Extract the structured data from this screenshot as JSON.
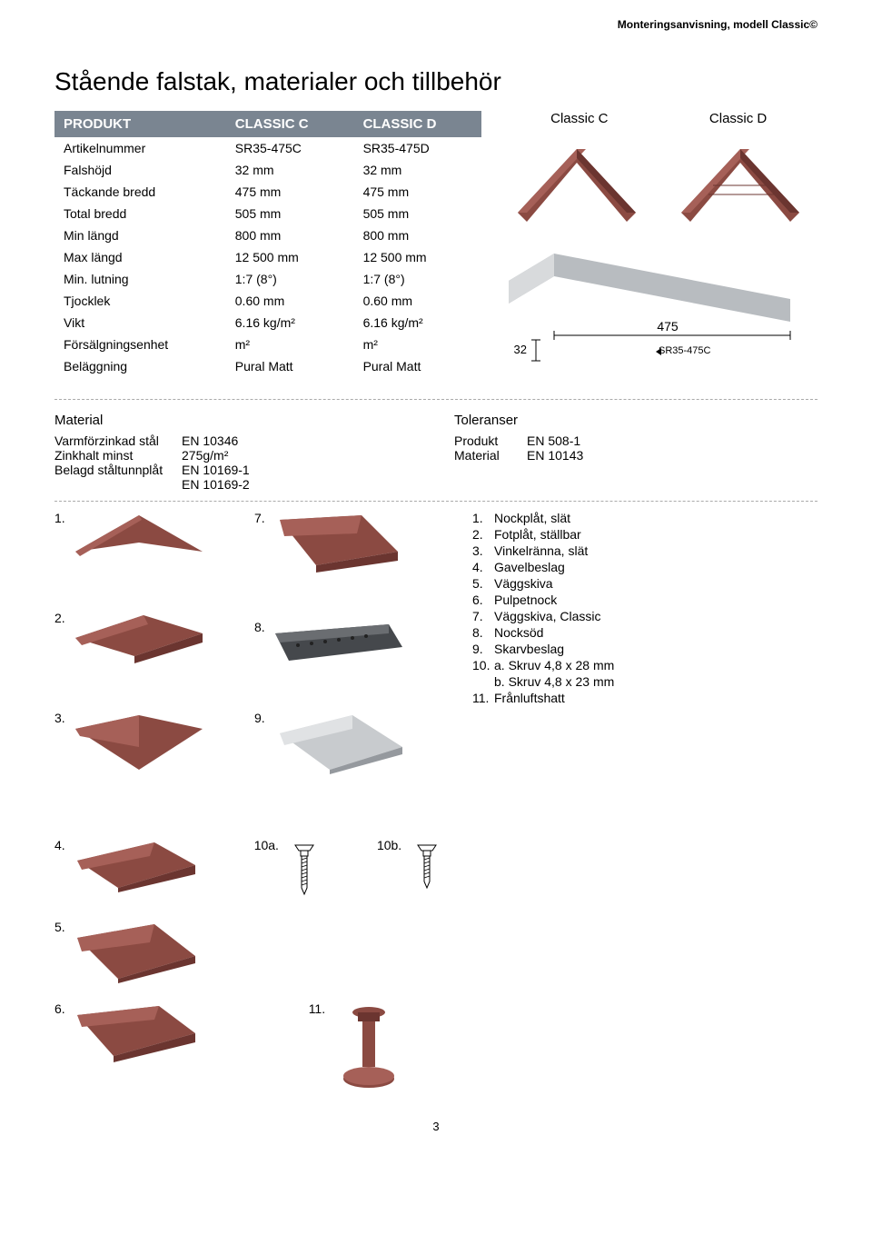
{
  "header": {
    "breadcrumb": "Monteringsanvisning, modell Classic©"
  },
  "title": "Stående falstak, materialer och tillbehör",
  "productImages": {
    "left": "Classic C",
    "right": "Classic D"
  },
  "specTable": {
    "headers": [
      "PRODUKT",
      "CLASSIC C",
      "CLASSIC D"
    ],
    "rows": [
      [
        "Artikelnummer",
        "SR35-475C",
        "SR35-475D"
      ],
      [
        "Falshöjd",
        "32 mm",
        "32 mm"
      ],
      [
        "Täckande bredd",
        "475 mm",
        "475 mm"
      ],
      [
        "Total bredd",
        "505 mm",
        "505 mm"
      ],
      [
        "Min längd",
        "800 mm",
        "800 mm"
      ],
      [
        "Max längd",
        "12 500 mm",
        "12 500 mm"
      ],
      [
        "Min. lutning",
        "1:7 (8°)",
        "1:7 (8°)"
      ],
      [
        "Tjocklek",
        "0.60 mm",
        "0.60 mm"
      ],
      [
        "Vikt",
        "6.16 kg/m²",
        "6.16 kg/m²"
      ],
      [
        "Försälgningsenhet",
        "m²",
        "m²"
      ],
      [
        "Beläggning",
        "Pural Matt",
        "Pural Matt"
      ]
    ]
  },
  "diagram": {
    "width": "475",
    "height": "32",
    "label": "SR35-475C"
  },
  "material": {
    "title": "Material",
    "lines": [
      {
        "k": "Varmförzinkad stål",
        "v": "EN 10346"
      },
      {
        "k": "Zinkhalt minst",
        "v": "275g/m²"
      },
      {
        "k": "Belagd ståltunnplåt",
        "v": "EN 10169-1"
      },
      {
        "k": "",
        "v": "EN 10169-2"
      }
    ]
  },
  "tolerances": {
    "title": "Toleranser",
    "lines": [
      {
        "k": "Produkt",
        "v": "EN 508-1"
      },
      {
        "k": "Material",
        "v": "EN 10143"
      }
    ]
  },
  "partsNumbers": {
    "left": [
      "1.",
      "2.",
      "3."
    ],
    "mid": [
      "7.",
      "8.",
      "9."
    ],
    "bottom1": [
      "4.",
      "10a.",
      "10b."
    ],
    "bottom2": [
      "5."
    ],
    "bottom3": [
      "6.",
      "11."
    ]
  },
  "partsList": [
    {
      "n": "1.",
      "t": "Nockplåt, slät"
    },
    {
      "n": "2.",
      "t": "Fotplåt, ställbar"
    },
    {
      "n": "3.",
      "t": "Vinkelränna, slät"
    },
    {
      "n": "4.",
      "t": "Gavelbeslag"
    },
    {
      "n": "5.",
      "t": "Väggskiva"
    },
    {
      "n": "6.",
      "t": "Pulpetnock"
    },
    {
      "n": "7.",
      "t": "Väggskiva, Classic"
    },
    {
      "n": "8.",
      "t": "Nocksöd"
    },
    {
      "n": "9.",
      "t": "Skarvbeslag"
    },
    {
      "n": "10.",
      "t": "a. Skruv 4,8 x 28 mm"
    },
    {
      "n": "",
      "t": "b. Skruv 4,8 x 23 mm"
    },
    {
      "n": "11.",
      "t": "Frånluftshatt"
    }
  ],
  "colors": {
    "brown": "#8b4a42",
    "brownDark": "#6b3530",
    "brownLight": "#a66058",
    "grey": "#95999e",
    "greyDark": "#45484c",
    "greyLight": "#c8cbce",
    "tableHeader": "#7a8591"
  },
  "pageNumber": "3"
}
